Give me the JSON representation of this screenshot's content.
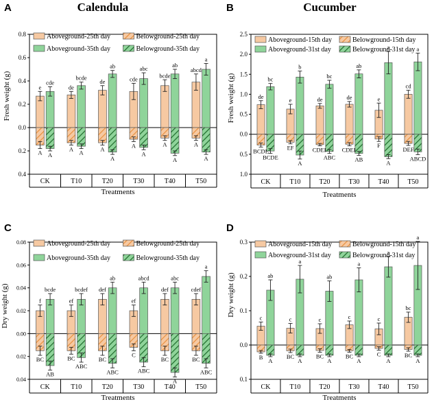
{
  "colors": {
    "aboveground": "#f6c9a2",
    "belowground_pattern_a": "#f6c9a2",
    "belowground_pattern_b": "#e8903e",
    "aboveground_2": "#8fd49a",
    "belowground2_pattern_a": "#8fd49a",
    "belowground2_pattern_b": "#1f6b2c",
    "axis": "#000000"
  },
  "chart_data": [
    {
      "panel_letter": "A",
      "title": "Calendula",
      "type": "bar",
      "categories": [
        "CK",
        "T10",
        "T20",
        "T30",
        "T40",
        "T50"
      ],
      "xlabel": "Treatments",
      "ylabel": "Fresh weight (g)",
      "ylim": [
        -0.4,
        0.8
      ],
      "yticks": [
        0.8,
        0.6,
        0.4,
        0.2,
        0.0,
        -0.2,
        -0.4
      ],
      "ytick_labels": [
        "0.8",
        "0.6",
        "0.4",
        "0.2",
        "0.0",
        "0.2",
        "0.4"
      ],
      "legend": [
        "Aboveground-25th day",
        "Belowground-25th day",
        "Aboveground-35th day",
        "Belowground-35th day"
      ],
      "series": [
        {
          "name": "Aboveground-25th day",
          "values": [
            0.27,
            0.28,
            0.32,
            0.31,
            0.36,
            0.39
          ],
          "err": [
            0.04,
            0.03,
            0.04,
            0.07,
            0.05,
            0.07
          ],
          "letters": [
            "e",
            "de",
            "de",
            "cde",
            "bcde",
            "abcd"
          ]
        },
        {
          "name": "Aboveground-35th day",
          "values": [
            0.31,
            0.36,
            0.46,
            0.42,
            0.46,
            0.5
          ],
          "err": [
            0.04,
            0.03,
            0.03,
            0.05,
            0.04,
            0.05
          ],
          "letters": [
            "cde",
            "bcde",
            "ab",
            "abc",
            "ab",
            "a"
          ]
        },
        {
          "name": "Belowground-25th day",
          "values": [
            -0.15,
            -0.13,
            -0.13,
            -0.1,
            -0.09,
            -0.09
          ],
          "err": [
            0.03,
            0.02,
            0.02,
            0.02,
            0.02,
            0.02
          ],
          "letters": [
            "A",
            "A",
            "A",
            "A",
            "A",
            "A"
          ]
        },
        {
          "name": "Belowground-35th day",
          "values": [
            -0.18,
            -0.16,
            -0.21,
            -0.17,
            -0.22,
            -0.21
          ],
          "err": [
            0.02,
            0.02,
            0.02,
            0.02,
            0.02,
            0.02
          ],
          "letters": [
            "A",
            "A",
            "A",
            "A",
            "A",
            "A"
          ]
        }
      ]
    },
    {
      "panel_letter": "B",
      "title": "Cucumber",
      "type": "bar",
      "categories": [
        "CK",
        "T10",
        "T20",
        "T30",
        "T40",
        "T50"
      ],
      "xlabel": "Treatments",
      "ylabel": "Fresh weight (g)",
      "ylim": [
        -1.0,
        2.5
      ],
      "yticks": [
        2.5,
        2.0,
        1.5,
        1.0,
        0.5,
        0.0,
        -0.5,
        -1.0
      ],
      "ytick_labels": [
        "2.5",
        "2.0",
        "1.5",
        "1.0",
        "0.5",
        "0.0",
        "0.5",
        "1.0"
      ],
      "legend": [
        "Aboveground-15th day",
        "Belowground-15th day",
        "Aboveground-31st day",
        "Belowground-31st day"
      ],
      "series": [
        {
          "name": "Aboveground-15th day",
          "values": [
            0.74,
            0.63,
            0.71,
            0.75,
            0.6,
            1.0
          ],
          "err": [
            0.1,
            0.12,
            0.06,
            0.07,
            0.18,
            0.1
          ],
          "letters": [
            "de",
            "e",
            "de",
            "de",
            "e",
            "cd"
          ]
        },
        {
          "name": "Aboveground-31st day",
          "values": [
            1.19,
            1.43,
            1.25,
            1.51,
            1.79,
            1.81
          ],
          "err": [
            0.08,
            0.15,
            0.1,
            0.1,
            0.28,
            0.22
          ],
          "letters": [
            "bc",
            "b",
            "bc",
            "ab",
            "a",
            "a"
          ]
        },
        {
          "name": "Belowground-15th day",
          "values": [
            -0.27,
            -0.2,
            -0.26,
            -0.25,
            -0.12,
            -0.23
          ],
          "err": [
            0.05,
            0.04,
            0.03,
            0.04,
            0.06,
            0.05
          ],
          "letters": [
            "BCDE",
            "EF",
            "CDEF",
            "CDEF",
            "F",
            "DEF"
          ]
        },
        {
          "name": "Belowground-31st day",
          "values": [
            -0.42,
            -0.52,
            -0.43,
            -0.48,
            -0.56,
            -0.44
          ],
          "err": [
            0.06,
            0.1,
            0.05,
            0.05,
            0.05,
            0.07
          ],
          "letters": [
            "BCDE",
            "A",
            "ABC",
            "AB",
            "A",
            "ABCD"
          ]
        }
      ]
    },
    {
      "panel_letter": "C",
      "title": "",
      "type": "bar",
      "categories": [
        "CK",
        "T10",
        "T20",
        "T30",
        "T40",
        "T50"
      ],
      "xlabel": "Treatments",
      "ylabel": "Dry weight (g)",
      "ylim": [
        -0.04,
        0.08
      ],
      "yticks": [
        0.08,
        0.06,
        0.04,
        0.02,
        0.0,
        -0.02,
        -0.04
      ],
      "ytick_labels": [
        "0.08",
        "0.06",
        "0.04",
        "0.02",
        "0.00",
        "0.02",
        "0.04"
      ],
      "legend": [
        "Aboveground-25th day",
        "Belowground-25th day",
        "Aboveground-35th day",
        "Belowground-35th day"
      ],
      "series": [
        {
          "name": "Aboveground-25th day",
          "values": [
            0.02,
            0.02,
            0.03,
            0.02,
            0.03,
            0.03
          ],
          "err": [
            0.005,
            0.005,
            0.005,
            0.005,
            0.005,
            0.005
          ],
          "letters": [
            "f",
            "ef",
            "def",
            "ef",
            "def",
            "cdef"
          ]
        },
        {
          "name": "Aboveground-35th day",
          "values": [
            0.03,
            0.03,
            0.04,
            0.04,
            0.04,
            0.05
          ],
          "err": [
            0.005,
            0.005,
            0.005,
            0.005,
            0.005,
            0.005
          ],
          "letters": [
            "bcde",
            "bcdef",
            "ab",
            "abcd",
            "abc",
            "a"
          ]
        },
        {
          "name": "Belowground-25th day",
          "values": [
            -0.015,
            -0.015,
            -0.015,
            -0.012,
            -0.015,
            -0.015
          ],
          "err": [
            0.004,
            0.003,
            0.004,
            0.003,
            0.004,
            0.004
          ],
          "letters": [
            "BC",
            "BC",
            "BC",
            "C",
            "BC",
            "BC"
          ]
        },
        {
          "name": "Belowground-35th day",
          "values": [
            -0.028,
            -0.021,
            -0.026,
            -0.025,
            -0.034,
            -0.026
          ],
          "err": [
            0.004,
            0.004,
            0.004,
            0.004,
            0.004,
            0.004
          ],
          "letters": [
            "AB",
            "ABC",
            "ABC",
            "ABC",
            "A",
            "ABC"
          ]
        }
      ]
    },
    {
      "panel_letter": "D",
      "title": "",
      "type": "bar",
      "categories": [
        "CK",
        "T10",
        "T20",
        "T30",
        "T40",
        "T50"
      ],
      "xlabel": "Treatments",
      "ylabel": "Dry weight (g)",
      "ylim": [
        -0.1,
        0.3
      ],
      "yticks": [
        0.3,
        0.2,
        0.1,
        0.0,
        -0.1
      ],
      "ytick_labels": [
        "0.3",
        "0.2",
        "0.1",
        "0.0",
        "0.1"
      ],
      "legend": [
        "Aboveground-15th day",
        "Belowground-15th day",
        "Aboveground-31st day",
        "Belowground-31st day"
      ],
      "series": [
        {
          "name": "Aboveground-15th day",
          "values": [
            0.055,
            0.049,
            0.048,
            0.059,
            0.047,
            0.081
          ],
          "err": [
            0.012,
            0.014,
            0.014,
            0.011,
            0.017,
            0.015
          ],
          "letters": [
            "c",
            "c",
            "c",
            "c",
            "c",
            "bc"
          ]
        },
        {
          "name": "Aboveground-31st day",
          "values": [
            0.16,
            0.192,
            0.157,
            0.19,
            0.228,
            0.232
          ],
          "err": [
            0.03,
            0.04,
            0.03,
            0.035,
            0.03,
            0.07
          ],
          "letters": [
            "ab",
            "a",
            "ab",
            "a",
            "a",
            "a"
          ]
        },
        {
          "name": "Belowground-15th day",
          "values": [
            -0.02,
            -0.017,
            -0.016,
            -0.017,
            -0.01,
            -0.013
          ],
          "err": [
            0.004,
            0.005,
            0.005,
            0.004,
            0.005,
            0.005
          ],
          "letters": [
            "B",
            "BC",
            "BC",
            "BC",
            "C",
            "BC"
          ]
        },
        {
          "name": "Belowground-31st day",
          "values": [
            -0.03,
            -0.03,
            -0.03,
            -0.03,
            -0.03,
            -0.03
          ],
          "err": [
            0.004,
            0.004,
            0.004,
            0.004,
            0.004,
            0.004
          ],
          "letters": [
            "A",
            "A",
            "A",
            "A",
            "A",
            "A"
          ]
        }
      ]
    }
  ]
}
